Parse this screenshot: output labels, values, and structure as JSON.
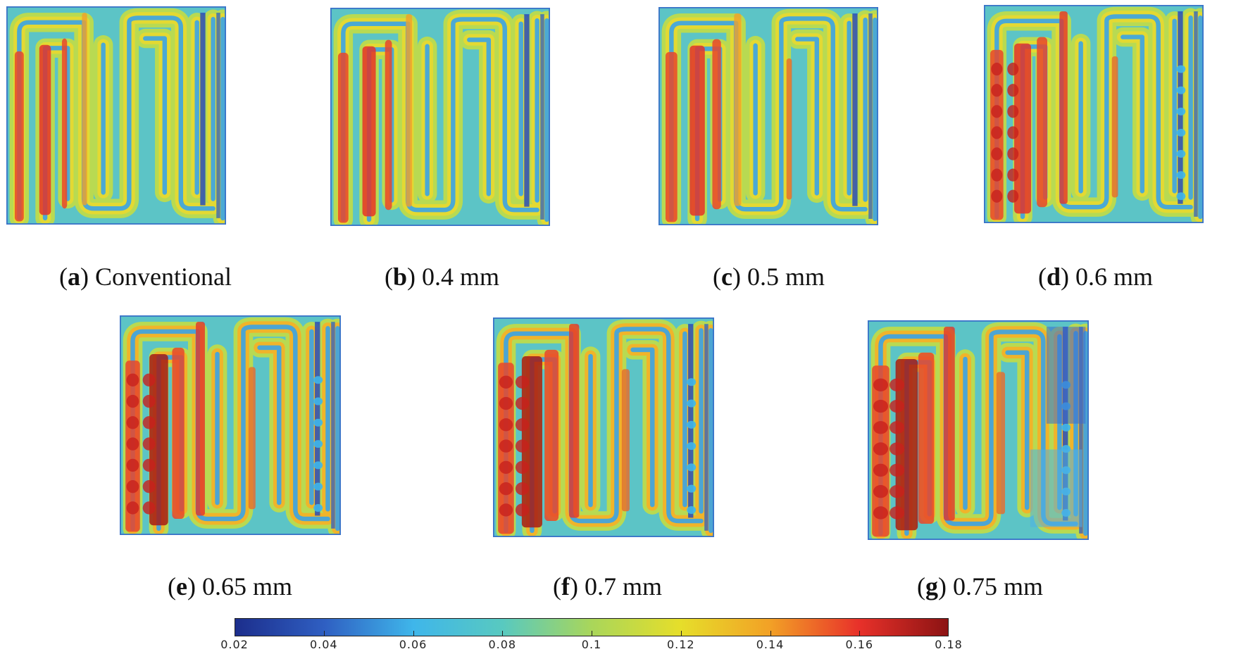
{
  "figure": {
    "panels": [
      {
        "key": "a",
        "letter": "a",
        "label": "Conventional",
        "intensity": 0.0
      },
      {
        "key": "b",
        "letter": "b",
        "label": "0.4 mm",
        "intensity": 0.15
      },
      {
        "key": "c",
        "letter": "c",
        "label": "0.5 mm",
        "intensity": 0.3
      },
      {
        "key": "d",
        "letter": "d",
        "label": "0.6 mm",
        "intensity": 0.45
      },
      {
        "key": "e",
        "letter": "e",
        "label": "0.65 mm",
        "intensity": 0.6
      },
      {
        "key": "f",
        "letter": "f",
        "label": "0.7 mm",
        "intensity": 0.75
      },
      {
        "key": "g",
        "letter": "g",
        "label": "0.75 mm",
        "intensity": 0.9
      }
    ],
    "colorbar": {
      "min": 0.02,
      "max": 0.18,
      "ticks": [
        "0.02",
        "0.04",
        "0.06",
        "0.08",
        "0.1",
        "0.12",
        "0.14",
        "0.16",
        "0.18"
      ],
      "colors": [
        "#1c2e8c",
        "#2f5fc2",
        "#3fb6ea",
        "#58c9c0",
        "#a9d65a",
        "#e6de2a",
        "#f2a126",
        "#e8312a",
        "#8c1313"
      ]
    }
  }
}
